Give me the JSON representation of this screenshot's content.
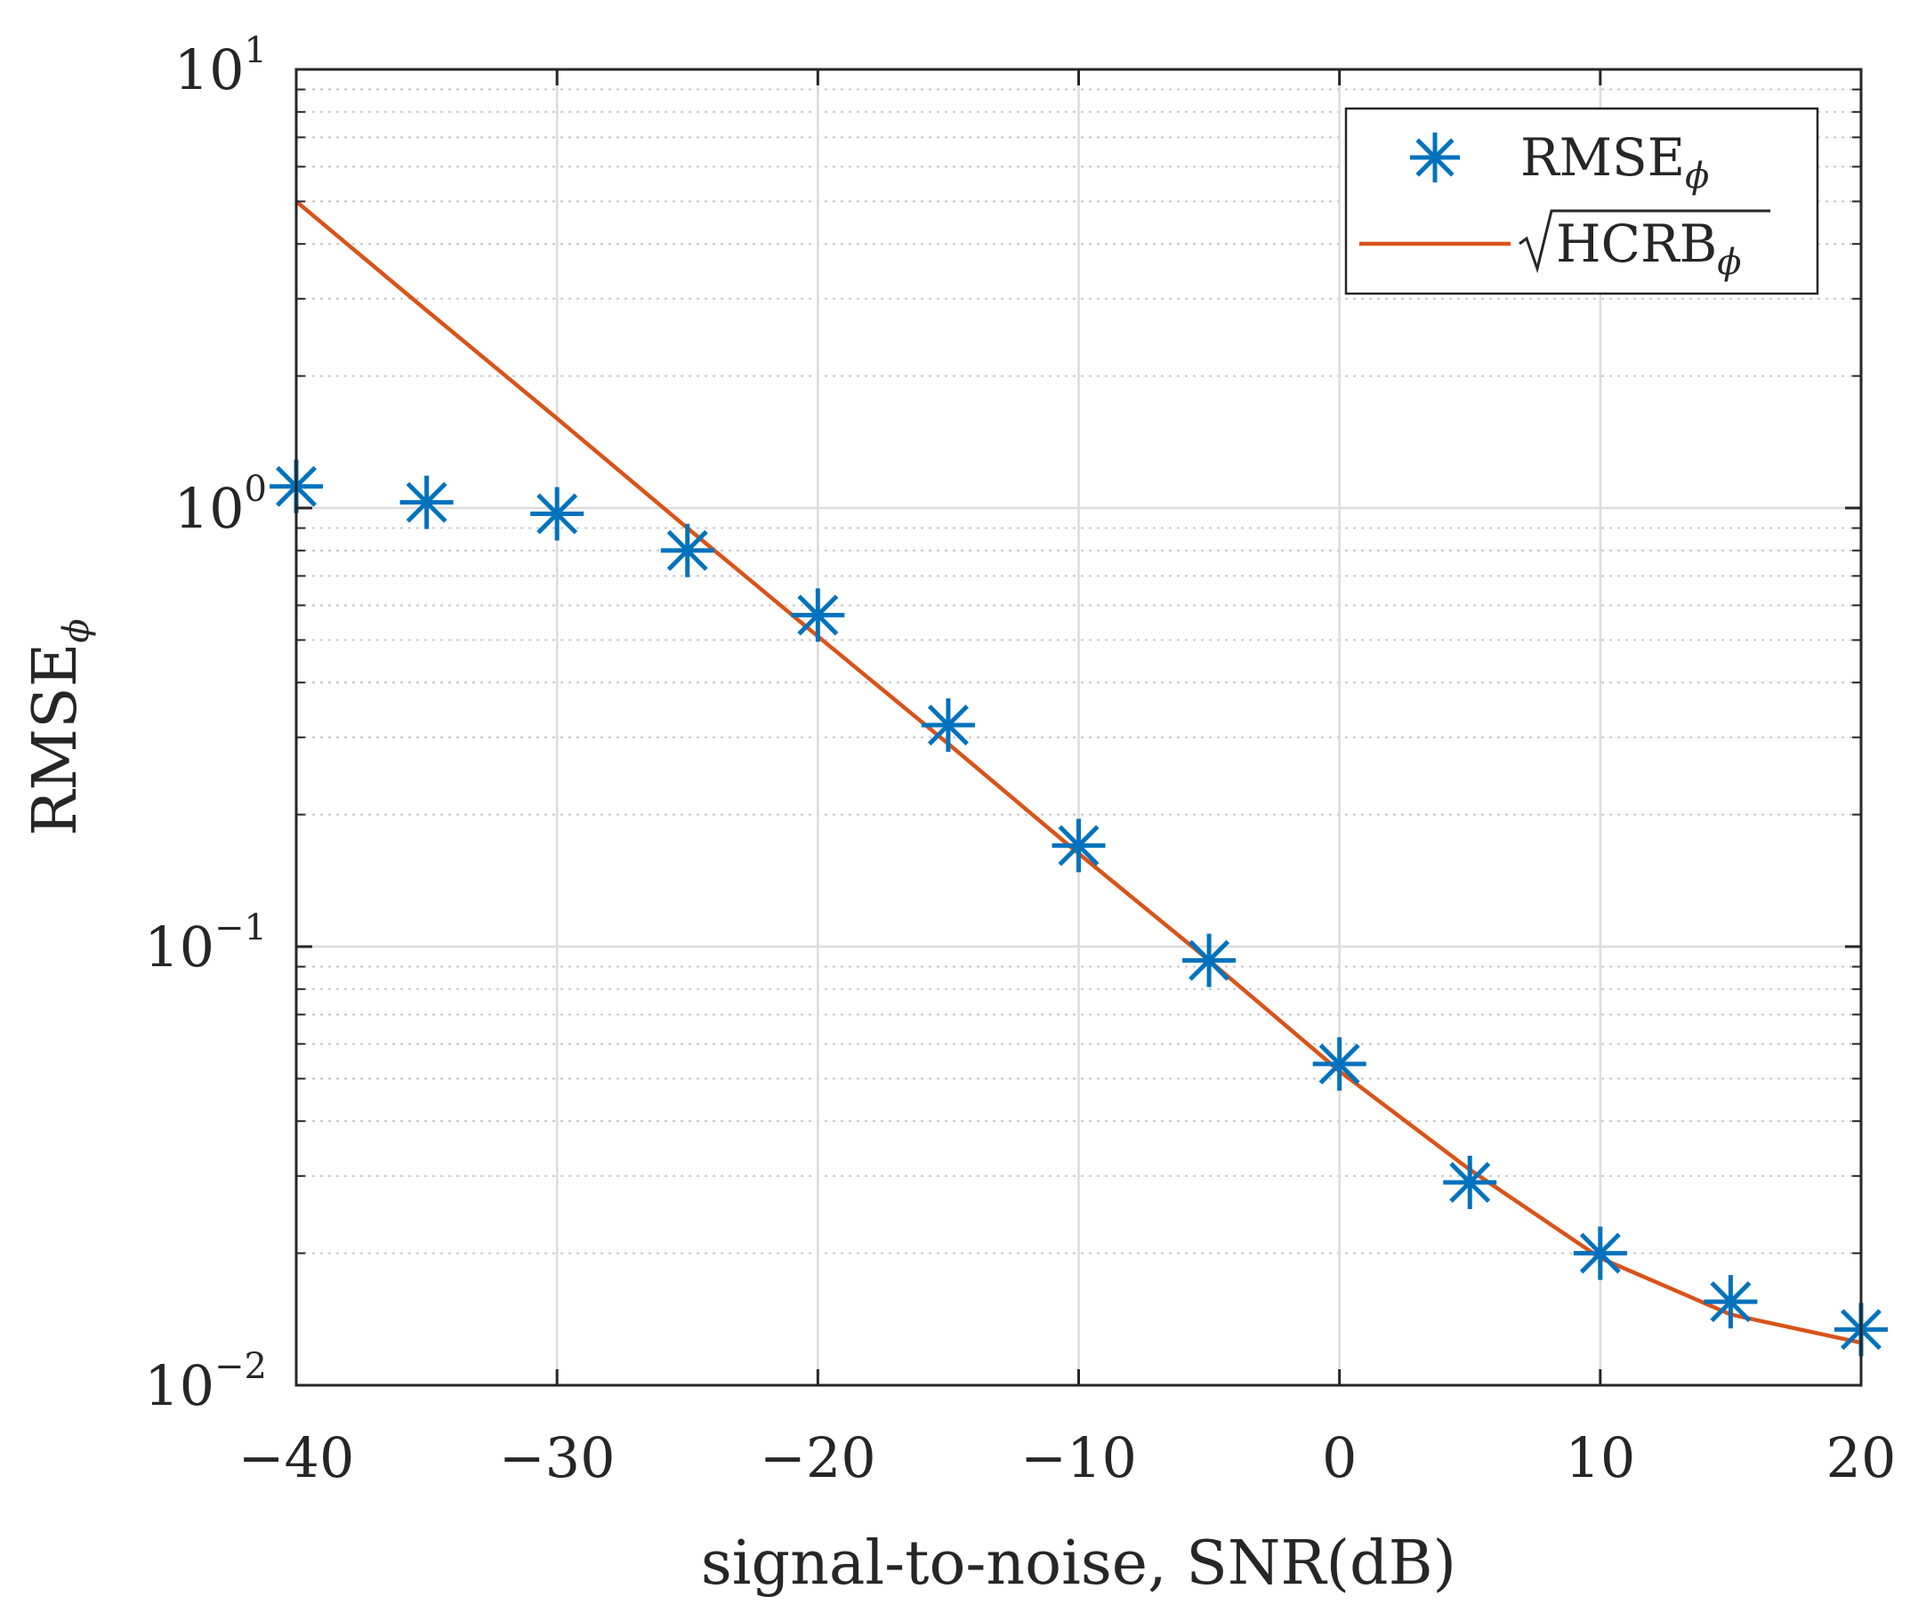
{
  "chart_data": {
    "type": "line",
    "xlabel": "signal-to-noise, SNR(dB)",
    "ylabel": "RMSE",
    "ylabel_subscript": "ϕ",
    "yscale": "log",
    "xlim": [
      -40,
      20
    ],
    "ylim": [
      0.01,
      10
    ],
    "grid": true,
    "legend_position": "top-right",
    "x_ticks": [
      -40,
      -30,
      -20,
      -10,
      0,
      10,
      20
    ],
    "x_tick_labels": [
      "−40",
      "−30",
      "−20",
      "−10",
      "0",
      "10",
      "20"
    ],
    "y_ticks": [
      {
        "value": 10,
        "base": "10",
        "exp": "1"
      },
      {
        "value": 1,
        "base": "10",
        "exp": "0"
      },
      {
        "value": 0.1,
        "base": "10",
        "exp": "−1"
      },
      {
        "value": 0.01,
        "base": "10",
        "exp": "−2"
      }
    ],
    "series": [
      {
        "name": "RMSE",
        "subscript": "ϕ",
        "marker": "asterisk",
        "color": "#0072BD",
        "x": [
          -40,
          -35,
          -30,
          -25,
          -20,
          -15,
          -10,
          -5,
          0,
          5,
          10,
          15,
          20
        ],
        "values": [
          1.12,
          1.03,
          0.97,
          0.8,
          0.57,
          0.32,
          0.17,
          0.093,
          0.054,
          0.029,
          0.02,
          0.0155,
          0.0134
        ]
      },
      {
        "name": "HCRB",
        "sqrt": true,
        "subscript": "ϕ",
        "marker": "line",
        "color": "#D95319",
        "x": [
          -40,
          -35,
          -30,
          -25,
          -20,
          -15,
          -10,
          -5,
          0,
          5,
          10,
          15,
          20
        ],
        "values": [
          5.0,
          2.82,
          1.6,
          0.9,
          0.51,
          0.29,
          0.163,
          0.093,
          0.052,
          0.031,
          0.0195,
          0.0145,
          0.0125
        ]
      }
    ]
  }
}
